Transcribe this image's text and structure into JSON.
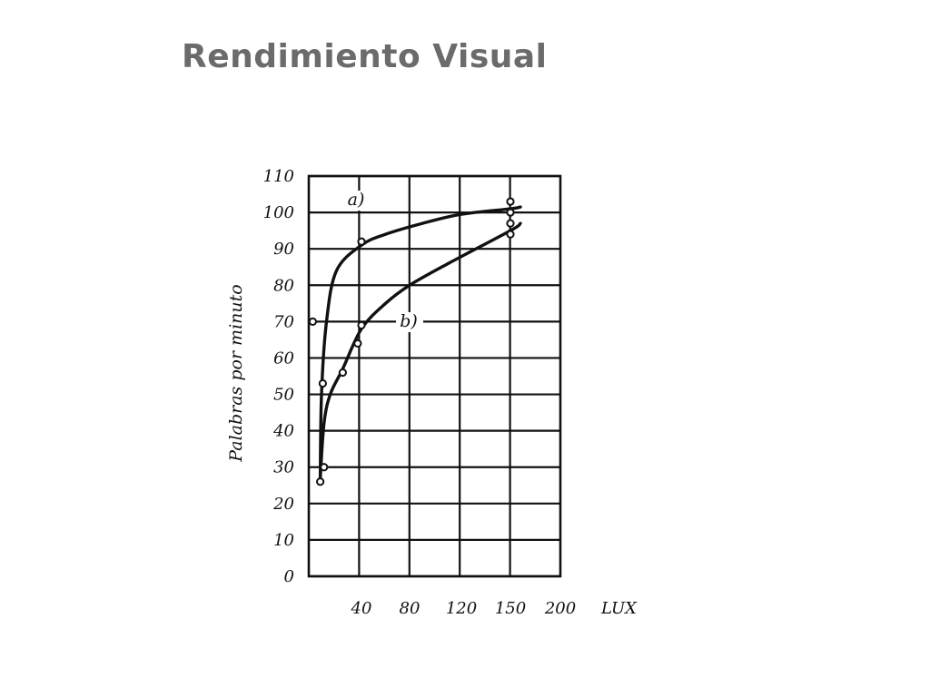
{
  "slide": {
    "title": "Rendimiento Visual"
  },
  "chart_data": {
    "type": "line",
    "title": "",
    "xlabel": "",
    "x_unit_label": "LUX",
    "ylabel": "Palabras por minuto",
    "y_ticks": [
      0,
      10,
      20,
      30,
      40,
      50,
      60,
      70,
      80,
      90,
      100,
      110
    ],
    "x_ticks": [
      40,
      80,
      120,
      150,
      200
    ],
    "ylim": [
      0,
      110
    ],
    "xlim": [
      0,
      200
    ],
    "grid": true,
    "series": [
      {
        "name": "a)",
        "points": [
          [
            7,
            27
          ],
          [
            8,
            50
          ],
          [
            12,
            70
          ],
          [
            20,
            84
          ],
          [
            40,
            91
          ],
          [
            60,
            94
          ],
          [
            90,
            97
          ],
          [
            120,
            99.5
          ],
          [
            150,
            101
          ],
          [
            160,
            101.5
          ]
        ],
        "markers": [
          [
            1,
            70
          ],
          [
            9,
            53
          ],
          [
            40,
            92
          ],
          [
            150,
            103
          ],
          [
            150,
            100
          ]
        ]
      },
      {
        "name": "b)",
        "points": [
          [
            7,
            27
          ],
          [
            10,
            42
          ],
          [
            15,
            50
          ],
          [
            25,
            57
          ],
          [
            40,
            68
          ],
          [
            60,
            75
          ],
          [
            80,
            80
          ],
          [
            110,
            86
          ],
          [
            150,
            95
          ],
          [
            160,
            97
          ]
        ],
        "markers": [
          [
            7,
            26
          ],
          [
            10,
            30
          ],
          [
            25,
            56
          ],
          [
            37,
            64
          ],
          [
            40,
            69
          ],
          [
            150,
            94
          ],
          [
            150,
            97
          ]
        ]
      }
    ]
  }
}
